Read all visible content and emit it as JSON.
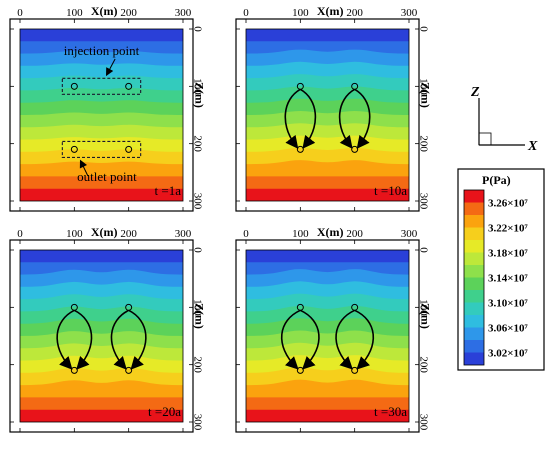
{
  "panels": [
    {
      "time_label": "t =1a",
      "x_axis_label": "X(m)",
      "z_axis_label": "Z(m)",
      "x_ticks": [
        "0",
        "100",
        "200",
        "300"
      ],
      "z_ticks": [
        "0",
        "100",
        "200",
        "300"
      ],
      "annotations": {
        "injection": "injection point",
        "outlet": "outlet point"
      },
      "has_loops": false,
      "bulge": 0.0
    },
    {
      "time_label": "t =10a",
      "x_axis_label": "X(m)",
      "z_axis_label": "Z(m)",
      "x_ticks": [
        "0",
        "100",
        "200",
        "300"
      ],
      "z_ticks": [
        "0",
        "100",
        "200",
        "300"
      ],
      "has_loops": true,
      "bulge": 0.5
    },
    {
      "time_label": "t =20a",
      "x_axis_label": "X(m)",
      "z_axis_label": "Z(m)",
      "x_ticks": [
        "0",
        "100",
        "200",
        "300"
      ],
      "z_ticks": [
        "0",
        "100",
        "200",
        "300"
      ],
      "has_loops": true,
      "bulge": 0.8
    },
    {
      "time_label": "t =30a",
      "x_axis_label": "X(m)",
      "z_axis_label": "Z(m)",
      "x_ticks": [
        "0",
        "100",
        "200",
        "300"
      ],
      "z_ticks": [
        "0",
        "100",
        "200",
        "300"
      ],
      "has_loops": true,
      "bulge": 1.0
    }
  ],
  "wells": {
    "injection_z": 100,
    "outlet_z": 210,
    "x_positions": [
      100,
      200
    ]
  },
  "legend": {
    "title": "P(Pa)",
    "labels": [
      "3.26×10⁷",
      "3.22×10⁷",
      "3.18×10⁷",
      "3.14×10⁷",
      "3.10×10⁷",
      "3.06×10⁷",
      "3.02×10⁷"
    ],
    "colors": [
      "#e8131a",
      "#f46a14",
      "#fba30e",
      "#f6cf1c",
      "#e6ea27",
      "#bde83a",
      "#8ee04b",
      "#5cd25a",
      "#3fd08c",
      "#33cbbd",
      "#2fbde0",
      "#2e97ea",
      "#2d6ee4",
      "#2a40d8"
    ]
  },
  "triad": {
    "z": "Z",
    "x": "X"
  }
}
